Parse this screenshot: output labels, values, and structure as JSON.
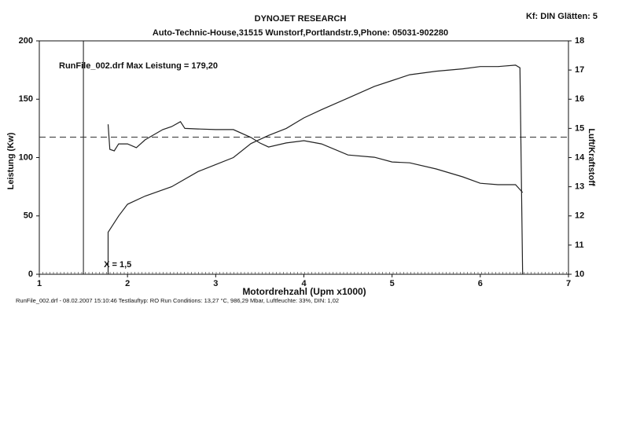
{
  "chart_data": {
    "type": "line",
    "title": "DYNOJET RESEARCH",
    "subtitle": "Auto-Technic-House,31515 Wunstorf,Portlandstr.9,Phone: 05031-902280",
    "settings_text": "Kf: DIN  Glätten: 5",
    "annotation": "RunFile_002.drf Max Leistung = 179,20",
    "footer": "RunFile_002.drf - 08.02.2007 15:10:46   Testlauftyp: RO   Run Conditions: 13,27 °C, 986,29 Mbar,   Luftfeuchte: 33%, DIN: 1,02",
    "x_label": "Motordrehzahl (Upm x1000)",
    "y_label": "Leistung (Kw)",
    "y2_label": "Luft/Kraftstoff",
    "xlim": [
      1,
      7
    ],
    "xticks": [
      1,
      2,
      3,
      4,
      5,
      6,
      7
    ],
    "ylim": [
      0,
      200
    ],
    "yticks": [
      0,
      50,
      100,
      150,
      200
    ],
    "y2lim": [
      10,
      18
    ],
    "y2ticks": [
      10,
      11,
      12,
      13,
      14,
      15,
      16,
      17,
      18
    ],
    "marker_x": {
      "value": 1.5,
      "label": "X = 1,5"
    },
    "reference_y2": 14.7,
    "series": [
      {
        "color": "#222222",
        "x": [
          1.78,
          1.78,
          1.9,
          2.0,
          2.2,
          2.5,
          2.8,
          3.0,
          3.2,
          3.4,
          3.6,
          3.8,
          4.0,
          4.2,
          4.5,
          4.8,
          5.0,
          5.2,
          5.5,
          5.8,
          6.0,
          6.2,
          6.4,
          6.45,
          6.48
        ],
        "values": [
          0,
          36,
          50,
          60,
          67,
          75,
          88,
          94,
          100,
          112,
          119,
          125,
          134,
          141,
          151,
          161,
          166,
          171,
          174,
          176,
          178,
          178,
          179.2,
          177,
          0
        ]
      },
      {
        "color": "#222222",
        "axis": "y2",
        "x": [
          1.78,
          1.8,
          1.85,
          1.9,
          2.0,
          2.1,
          2.2,
          2.4,
          2.5,
          2.6,
          2.65,
          2.8,
          3.0,
          3.2,
          3.4,
          3.5,
          3.6,
          3.8,
          4.0,
          4.2,
          4.5,
          4.8,
          5.0,
          5.2,
          5.5,
          5.8,
          6.0,
          6.2,
          6.4,
          6.48
        ],
        "values": [
          15.14,
          14.28,
          14.23,
          14.47,
          14.47,
          14.34,
          14.61,
          14.96,
          15.06,
          15.23,
          15.0,
          14.98,
          14.96,
          14.96,
          14.69,
          14.5,
          14.36,
          14.5,
          14.58,
          14.47,
          14.09,
          14.01,
          13.85,
          13.82,
          13.61,
          13.34,
          13.12,
          13.07,
          13.07,
          12.8
        ]
      }
    ]
  }
}
